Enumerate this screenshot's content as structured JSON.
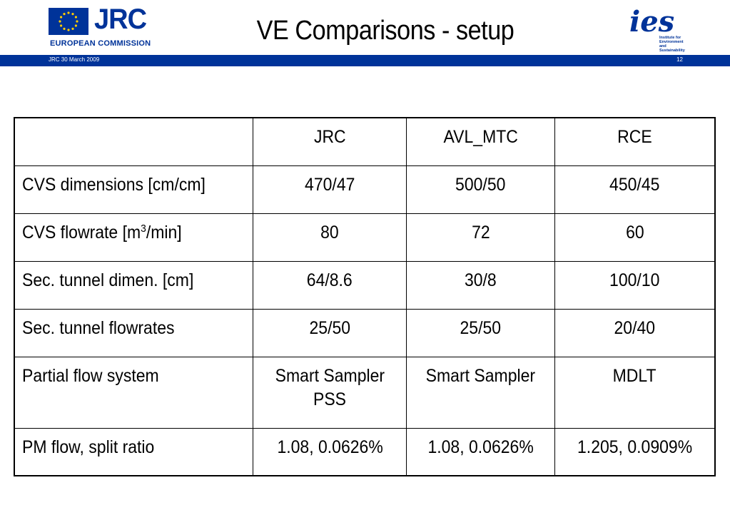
{
  "header": {
    "title": "VE Comparisons - setup",
    "jrc_logo_text": "JRC",
    "commission_text": "EUROPEAN COMMISSION",
    "ies_logo_text": "ies",
    "ies_subtitle": "Institute for\nEnvironment and\nSustainability",
    "footer_left": "JRC  30 March 2009",
    "page_number": "12"
  },
  "colors": {
    "brand_blue": "#003399",
    "eu_star_yellow": "#ffcc00"
  },
  "table": {
    "columns": [
      "",
      "JRC",
      "AVL_MTC",
      "RCE"
    ],
    "rows": [
      {
        "label": "CVS dimensions [cm/cm]",
        "values": [
          "470/47",
          "500/50",
          "450/45"
        ]
      },
      {
        "label_pre": "CVS flowrate [m",
        "label_sup": "3",
        "label_post": "/min]",
        "values": [
          "80",
          "72",
          "60"
        ]
      },
      {
        "label": "Sec. tunnel dimen. [cm]",
        "values": [
          "64/8.6",
          "30/8",
          "100/10"
        ]
      },
      {
        "label": "Sec. tunnel flowrates",
        "values": [
          "25/50",
          "25/50",
          "20/40"
        ]
      },
      {
        "label": "Partial flow system",
        "values": [
          "Smart Sampler",
          "Smart Sampler",
          "MDLT"
        ],
        "values_line2": [
          "PSS",
          "",
          ""
        ]
      },
      {
        "label": "PM flow, split ratio",
        "values": [
          "1.08, 0.0626%",
          "1.08, 0.0626%",
          "1.205, 0.0909%"
        ]
      }
    ]
  }
}
